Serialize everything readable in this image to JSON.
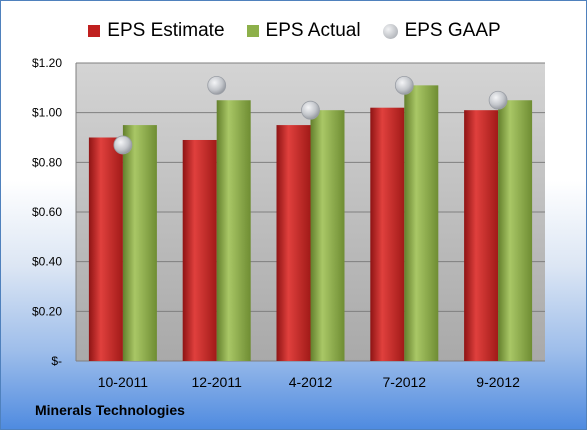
{
  "chart_data": {
    "type": "bar",
    "categories": [
      "10-2011",
      "12-2011",
      "4-2012",
      "7-2012",
      "9-2012"
    ],
    "series": [
      {
        "name": "EPS Estimate",
        "kind": "bar",
        "color": "#c0201f",
        "values": [
          0.9,
          0.89,
          0.95,
          1.02,
          1.01
        ]
      },
      {
        "name": "EPS Actual",
        "kind": "bar",
        "color": "#8db04a",
        "values": [
          0.95,
          1.05,
          1.01,
          1.11,
          1.05
        ]
      },
      {
        "name": "EPS GAAP",
        "kind": "marker",
        "color": "#b9bcc2",
        "values": [
          0.87,
          1.11,
          1.01,
          1.11,
          1.05
        ]
      }
    ],
    "yticks": [
      {
        "value": 0,
        "label": "$-"
      },
      {
        "value": 0.2,
        "label": "$0.20"
      },
      {
        "value": 0.4,
        "label": "$0.40"
      },
      {
        "value": 0.6,
        "label": "$0.60"
      },
      {
        "value": 0.8,
        "label": "$0.80"
      },
      {
        "value": 1.0,
        "label": "$1.00"
      },
      {
        "value": 1.2,
        "label": "$1.20"
      }
    ],
    "ylim": [
      0,
      1.2
    ],
    "legend_position": "top",
    "grid": true
  },
  "company_label": "Minerals Technologies"
}
